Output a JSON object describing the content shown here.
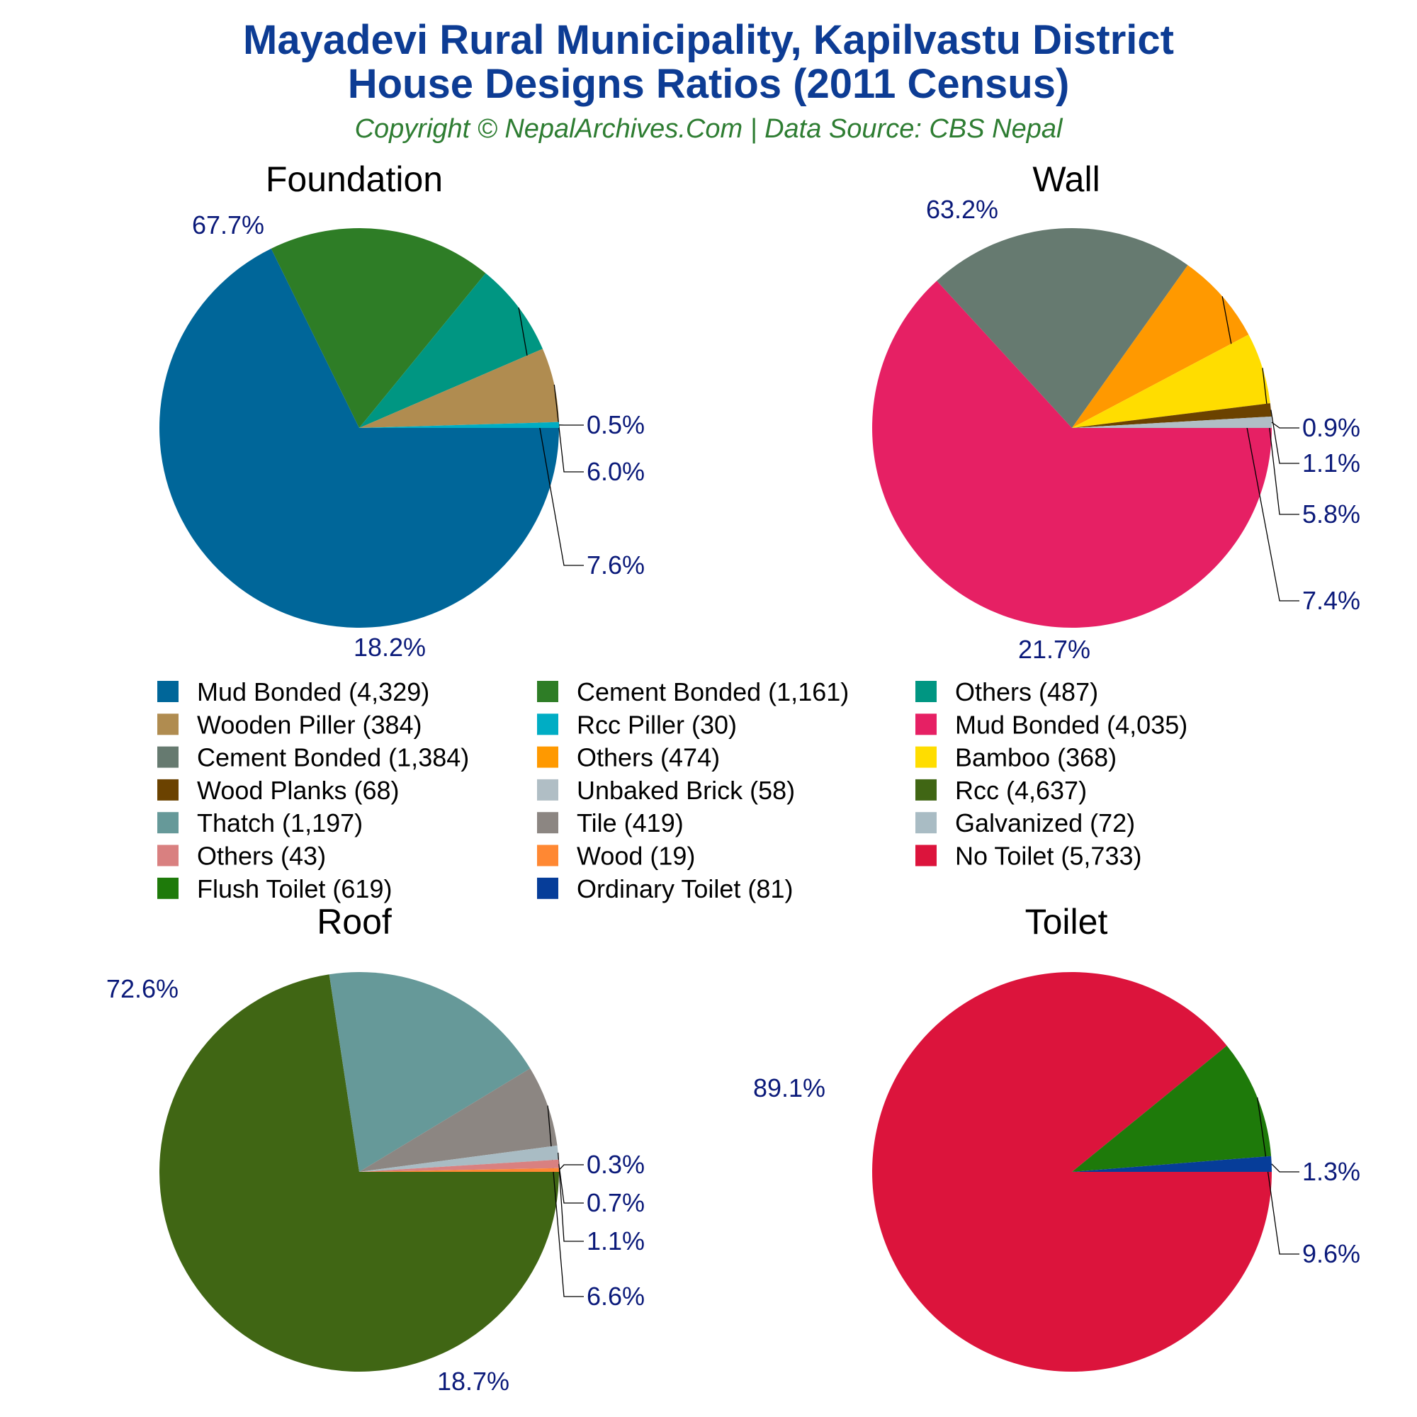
{
  "header": {
    "title_line1": "Mayadevi Rural Municipality, Kapilvastu District",
    "title_line2": "House Designs Ratios (2011 Census)",
    "copyright": "Copyright © NepalArchives.Com | Data Source: CBS Nepal"
  },
  "chart_data": [
    {
      "type": "pie",
      "title": "Foundation",
      "slices": [
        {
          "label": "Mud Bonded",
          "count": "4,329",
          "value": 4329,
          "percent": "67.7%",
          "color": "#006699"
        },
        {
          "label": "Cement Bonded",
          "count": "1,161",
          "value": 1161,
          "percent": "18.2%",
          "color": "#2e7d26"
        },
        {
          "label": "Others",
          "count": "487",
          "value": 487,
          "percent": "7.6%",
          "color": "#009682"
        },
        {
          "label": "Wooden Piller",
          "count": "384",
          "value": 384,
          "percent": "6.0%",
          "color": "#b08c50"
        },
        {
          "label": "Rcc Piller",
          "count": "30",
          "value": 30,
          "percent": "0.5%",
          "color": "#00adc4"
        }
      ]
    },
    {
      "type": "pie",
      "title": "Wall",
      "slices": [
        {
          "label": "Mud Bonded",
          "count": "4,035",
          "value": 4035,
          "percent": "63.2%",
          "color": "#e62064"
        },
        {
          "label": "Cement Bonded",
          "count": "1,384",
          "value": 1384,
          "percent": "21.7%",
          "color": "#667a70"
        },
        {
          "label": "Others",
          "count": "474",
          "value": 474,
          "percent": "7.4%",
          "color": "#ff9900"
        },
        {
          "label": "Bamboo",
          "count": "368",
          "value": 368,
          "percent": "5.8%",
          "color": "#ffdd00"
        },
        {
          "label": "Wood Planks",
          "count": "68",
          "value": 68,
          "percent": "1.1%",
          "color": "#6b4200"
        },
        {
          "label": "Unbaked Brick",
          "count": "58",
          "value": 58,
          "percent": "0.9%",
          "color": "#b0bec5"
        }
      ]
    },
    {
      "type": "pie",
      "title": "Roof",
      "slices": [
        {
          "label": "Rcc",
          "count": "4,637",
          "value": 4637,
          "percent": "72.6%",
          "color": "#406614"
        },
        {
          "label": "Thatch",
          "count": "1,197",
          "value": 1197,
          "percent": "18.7%",
          "color": "#669999"
        },
        {
          "label": "Tile",
          "count": "419",
          "value": 419,
          "percent": "6.6%",
          "color": "#8c8682"
        },
        {
          "label": "Galvanized",
          "count": "72",
          "value": 72,
          "percent": "1.1%",
          "color": "#a9bcc4"
        },
        {
          "label": "Others",
          "count": "43",
          "value": 43,
          "percent": "0.7%",
          "color": "#d98080"
        },
        {
          "label": "Wood",
          "count": "19",
          "value": 19,
          "percent": "0.3%",
          "color": "#ff8833"
        }
      ]
    },
    {
      "type": "pie",
      "title": "Toilet",
      "slices": [
        {
          "label": "No Toilet",
          "count": "5,733",
          "value": 5733,
          "percent": "89.1%",
          "color": "#dc143c"
        },
        {
          "label": "Flush Toilet",
          "count": "619",
          "value": 619,
          "percent": "9.6%",
          "color": "#1e7a0a"
        },
        {
          "label": "Ordinary Toilet",
          "count": "81",
          "value": 81,
          "percent": "1.3%",
          "color": "#063d99"
        }
      ]
    }
  ],
  "legend": [
    {
      "label": "Mud Bonded",
      "count": "4,329",
      "color": "#006699"
    },
    {
      "label": "Cement Bonded",
      "count": "1,161",
      "color": "#2e7d26"
    },
    {
      "label": "Others",
      "count": "487",
      "color": "#009682"
    },
    {
      "label": "Wooden Piller",
      "count": "384",
      "color": "#b08c50"
    },
    {
      "label": "Rcc Piller",
      "count": "30",
      "color": "#00adc4"
    },
    {
      "label": "Mud Bonded",
      "count": "4,035",
      "color": "#e62064"
    },
    {
      "label": "Cement Bonded",
      "count": "1,384",
      "color": "#667a70"
    },
    {
      "label": "Others",
      "count": "474",
      "color": "#ff9900"
    },
    {
      "label": "Bamboo",
      "count": "368",
      "color": "#ffdd00"
    },
    {
      "label": "Wood Planks",
      "count": "68",
      "color": "#6b4200"
    },
    {
      "label": "Unbaked Brick",
      "count": "58",
      "color": "#b0bec5"
    },
    {
      "label": "Rcc",
      "count": "4,637",
      "color": "#406614"
    },
    {
      "label": "Thatch",
      "count": "1,197",
      "color": "#669999"
    },
    {
      "label": "Tile",
      "count": "419",
      "color": "#8c8682"
    },
    {
      "label": "Galvanized",
      "count": "72",
      "color": "#a9bcc4"
    },
    {
      "label": "Others",
      "count": "43",
      "color": "#d98080"
    },
    {
      "label": "Wood",
      "count": "19",
      "color": "#ff8833"
    },
    {
      "label": "No Toilet",
      "count": "5,733",
      "color": "#dc143c"
    },
    {
      "label": "Flush Toilet",
      "count": "619",
      "color": "#1e7a0a"
    },
    {
      "label": "Ordinary Toilet",
      "count": "81",
      "color": "#063d99"
    }
  ]
}
